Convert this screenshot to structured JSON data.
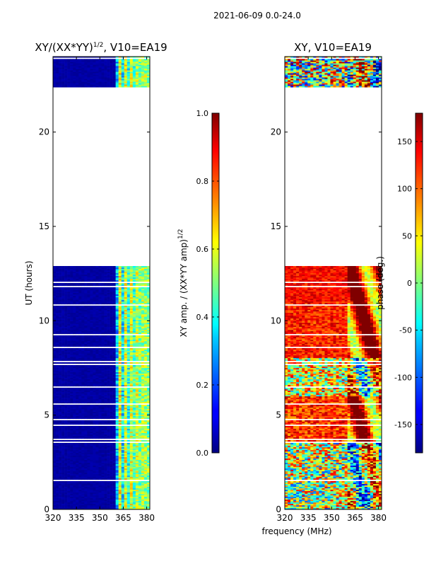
{
  "suptitle": "2021-06-09 0.0-24.0",
  "panels": [
    {
      "title_main": "XY/(XX*YY)",
      "title_sup": "1/2",
      "title_tail": ", V10=EA19",
      "ylabel": "UT (hours)",
      "yticks": [
        "0",
        "5",
        "10",
        "15",
        "20"
      ],
      "xticks": [
        "320",
        "335",
        "350",
        "365",
        "380"
      ]
    },
    {
      "title_main": "XY, V10=EA19",
      "ylabel": "",
      "yticks": [
        "0",
        "5",
        "10",
        "15",
        "20"
      ],
      "xticks": [
        "320",
        "335",
        "350",
        "365",
        "380"
      ]
    }
  ],
  "colorbars": [
    {
      "label_main": "XY amp. / (XX*YY amp)",
      "label_sup": "1/2",
      "ticks": [
        "0.0",
        "0.2",
        "0.4",
        "0.6",
        "0.8",
        "1.0"
      ]
    },
    {
      "label": "phase (deg.)",
      "ticks": [
        "-150",
        "-100",
        "-50",
        "0",
        "50",
        "100",
        "150"
      ]
    }
  ],
  "xlabel": "frequency (MHz)",
  "chart_data": [
    {
      "type": "heatmap",
      "title": "XY/(XX*YY)^1/2, V10=EA19",
      "xlabel": "frequency (MHz)",
      "ylabel": "UT (hours)",
      "xlim": [
        320,
        382
      ],
      "ylim": [
        0,
        24
      ],
      "xticks": [
        320,
        335,
        350,
        365,
        380
      ],
      "yticks": [
        0,
        5,
        10,
        15,
        20
      ],
      "colorbar": {
        "label": "XY amp. / (XX*YY amp)^1/2",
        "range": [
          0.0,
          1.0
        ]
      },
      "data_time_ranges_hours": [
        [
          0,
          12.85
        ],
        [
          22.3,
          24
        ]
      ],
      "description_of_values": "mostly near 0 (dark blue) below 360 MHz; values 0.3-0.6 in 360-380 MHz band"
    },
    {
      "type": "heatmap",
      "title": "XY, V10=EA19",
      "xlabel": "frequency (MHz)",
      "ylabel": "UT (hours)",
      "xlim": [
        320,
        382
      ],
      "ylim": [
        0,
        24
      ],
      "xticks": [
        320,
        335,
        350,
        365,
        380
      ],
      "yticks": [
        0,
        5,
        10,
        15,
        20
      ],
      "colorbar": {
        "label": "phase (deg.)",
        "range": [
          -180,
          180
        ]
      },
      "data_time_ranges_hours": [
        [
          0,
          12.85
        ],
        [
          22.3,
          24
        ]
      ]
    }
  ]
}
